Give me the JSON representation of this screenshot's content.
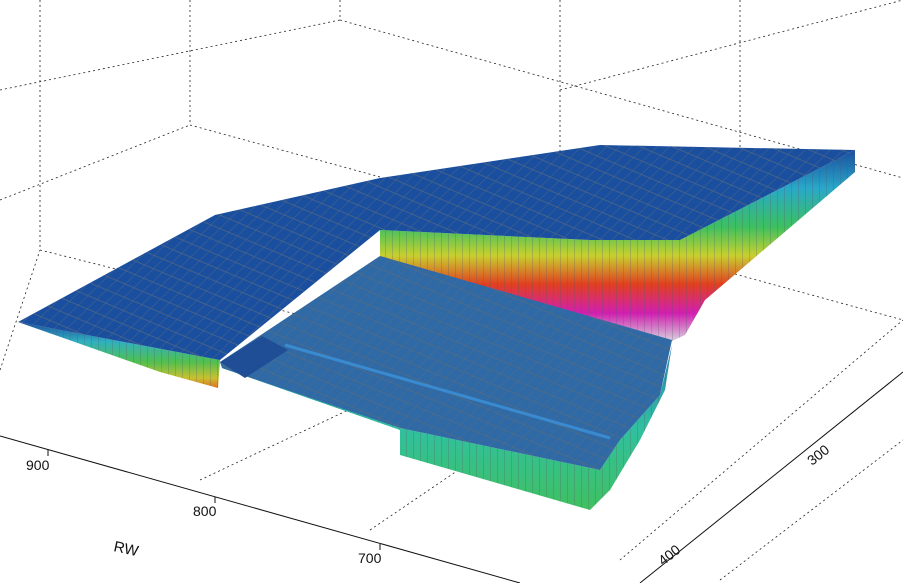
{
  "axes": {
    "front": {
      "label": "RW",
      "ticks": [
        "900",
        "800",
        "700"
      ]
    },
    "right": {
      "ticks": [
        "300",
        "400"
      ]
    }
  }
}
